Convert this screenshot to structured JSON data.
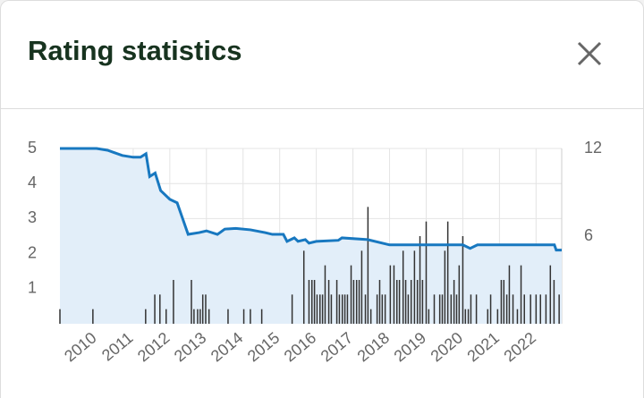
{
  "header": {
    "title": "Rating statistics"
  },
  "chart_data": {
    "type": "line",
    "xlim": [
      2009.0,
      2022.7
    ],
    "xticks": [
      2010,
      2011,
      2012,
      2013,
      2014,
      2015,
      2016,
      2017,
      2018,
      2019,
      2020,
      2021,
      2022
    ],
    "ylim": [
      0,
      5
    ],
    "yticks": [
      1,
      2,
      3,
      4,
      5
    ],
    "y2lim": [
      0,
      12
    ],
    "y2ticks": [
      6,
      12
    ],
    "grid": true,
    "series": [
      {
        "type": "line",
        "color": "#1878c0",
        "fill": "#e2eef9",
        "x": [
          2009.0,
          2010.0,
          2010.3,
          2010.7,
          2011.0,
          2011.2,
          2011.35,
          2011.45,
          2011.6,
          2011.75,
          2012.0,
          2012.2,
          2012.35,
          2012.5,
          2012.8,
          2013.0,
          2013.3,
          2013.5,
          2013.8,
          2014.2,
          2014.6,
          2014.8,
          2015.1,
          2015.2,
          2015.4,
          2015.5,
          2015.7,
          2015.8,
          2016.0,
          2016.6,
          2016.7,
          2017.4,
          2018.0,
          2020.0,
          2020.2,
          2020.4,
          2022.5,
          2022.55,
          2022.7
        ],
        "values": [
          5,
          5,
          4.95,
          4.8,
          4.75,
          4.75,
          4.85,
          4.2,
          4.3,
          3.8,
          3.55,
          3.45,
          3.0,
          2.55,
          2.6,
          2.65,
          2.55,
          2.7,
          2.72,
          2.68,
          2.6,
          2.55,
          2.55,
          2.35,
          2.45,
          2.35,
          2.4,
          2.3,
          2.35,
          2.38,
          2.45,
          2.4,
          2.25,
          2.25,
          2.15,
          2.25,
          2.25,
          2.1,
          2.1
        ]
      },
      {
        "type": "bar",
        "axis": "y2",
        "color": "#333333",
        "x": [
          2009.0,
          2009.9,
          2011.34,
          2011.59,
          2011.73,
          2011.9,
          2012.1,
          2012.59,
          2012.66,
          2012.76,
          2012.83,
          2012.9,
          2012.98,
          2013.07,
          2013.59,
          2014.02,
          2014.2,
          2014.51,
          2015.34,
          2015.66,
          2015.8,
          2015.88,
          2015.95,
          2016.02,
          2016.1,
          2016.17,
          2016.24,
          2016.34,
          2016.41,
          2016.56,
          2016.63,
          2016.71,
          2016.78,
          2016.85,
          2016.95,
          2017.02,
          2017.1,
          2017.17,
          2017.24,
          2017.34,
          2017.41,
          2017.49,
          2017.66,
          2017.73,
          2017.8,
          2017.88,
          2018.02,
          2018.12,
          2018.2,
          2018.27,
          2018.37,
          2018.44,
          2018.51,
          2018.59,
          2018.68,
          2018.76,
          2018.83,
          2018.9,
          2019.0,
          2019.07,
          2019.22,
          2019.37,
          2019.44,
          2019.51,
          2019.59,
          2019.68,
          2019.76,
          2019.83,
          2019.9,
          2020.0,
          2020.07,
          2020.15,
          2020.22,
          2020.37,
          2020.68,
          2020.76,
          2020.95,
          2021.05,
          2021.12,
          2021.2,
          2021.27,
          2021.37,
          2021.49,
          2021.59,
          2021.68,
          2021.85,
          2022.0,
          2022.12,
          2022.27,
          2022.39,
          2022.49,
          2022.63
        ],
        "values": [
          1,
          1,
          1,
          2,
          2,
          1,
          3,
          3,
          1,
          1,
          1,
          2,
          2,
          1,
          1,
          1,
          1,
          1,
          2,
          5,
          3,
          3,
          3,
          2,
          2,
          2,
          4,
          3,
          2,
          3,
          2,
          2,
          2,
          2,
          4,
          3,
          3,
          3,
          5,
          2,
          8,
          1,
          2,
          3,
          2,
          2,
          4,
          4,
          3,
          3,
          5,
          3,
          2,
          3,
          5,
          3,
          6,
          3,
          7,
          1,
          2,
          2,
          2,
          5,
          7,
          2,
          3,
          2,
          4,
          6,
          1,
          1,
          2,
          2,
          1,
          2,
          1,
          3,
          3,
          2,
          4,
          2,
          1,
          4,
          2,
          2,
          2,
          2,
          2,
          4,
          3,
          2
        ]
      }
    ]
  }
}
